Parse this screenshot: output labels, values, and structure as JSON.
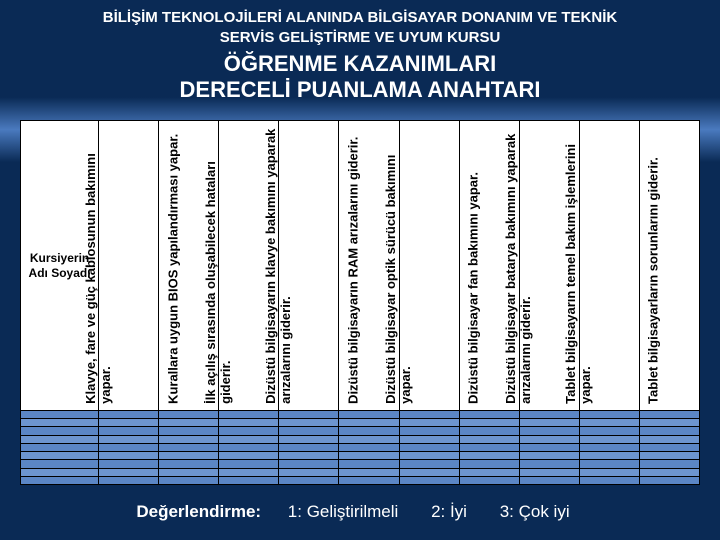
{
  "header": {
    "course_line1": "BİLİŞİM TEKNOLOJİLERİ ALANINDA BİLGİSAYAR  DONANIM VE TEKNİK",
    "course_line2": "SERVİS GELİŞTİRME VE UYUM KURSU",
    "title_line1": "ÖĞRENME KAZANIMLARI",
    "title_line2": "DERECELİ PUANLAMA ANAHTARI"
  },
  "table": {
    "name_header": "Kursiyerin Adı Soyadı",
    "criteria": [
      "Klavye, fare ve güç kablosunun bakımını yapar.",
      "Kurallara uygun BIOS yapılandırması yapar.",
      "İlk açılış sırasında oluşabilecek hataları giderir.",
      "Dizüstü bilgisayarın klavye bakımını yaparak arızalarını giderir.",
      "Dizüstü bilgisayarın RAM arızalarını giderir.",
      "Dizüstü bilgisayar optik sürücü bakımını yapar.",
      "Dizüstü bilgisayar fan bakımını yapar.",
      "Dizüstü bilgisayar batarya bakımını yaparak arızalarını giderir.",
      "Tablet bilgisayarın temel bakım işlemlerini yapar.",
      "Tablet bilgisayarların sorunlarını giderir."
    ],
    "row_count": 9,
    "header_bg": "#ffffff",
    "row_even_bg": "#5b86c5",
    "row_odd_bg": "#6d95cf",
    "border_color": "#000000",
    "text_color": "#000000"
  },
  "legend": {
    "label": "Değerlendirme:",
    "items": [
      "1: Geliştirilmeli",
      "2: İyi",
      "3: Çok iyi"
    ]
  },
  "colors": {
    "slide_bg_top": "#0a2a55",
    "slide_bg_accent": "#4a7abf",
    "title_text": "#ffffff",
    "legend_text": "#ffffff"
  }
}
